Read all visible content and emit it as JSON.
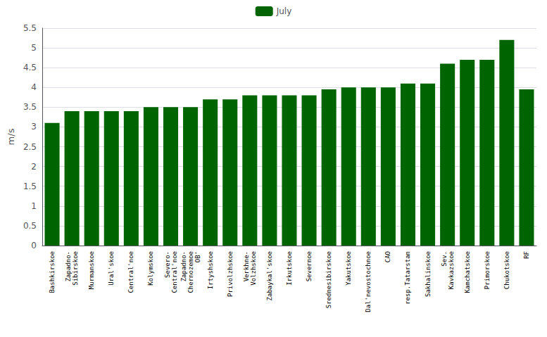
{
  "chart_data": {
    "type": "bar",
    "categories": [
      "Bashkirskoe",
      "Zapadno-\nSibirskoe",
      "Murmanskoe",
      "Ural'skoe",
      "Central'noe",
      "Kolymskoe",
      "Severo-\nCentral'noe",
      "Zapadno-\nChernozemoe\nOB'",
      "Irtyshskoe",
      "Privolzhskoe",
      "Verkhne-\nVolzhskoe",
      "Zabaykal'skoe",
      "Irkutskoe",
      "Severnoe",
      "Srednesibirskoe",
      "Yakutskoe",
      "Dal'nevostochnoe",
      "CAO",
      "resp.Tatarstan",
      "Sakhalinskoe",
      "Sev.\nKavkazskoe",
      "Kamchatskoe",
      "Primorskoe",
      "Chukotskoe",
      "RF"
    ],
    "series": [
      {
        "name": "July",
        "color": "#006400",
        "values": [
          3.1,
          3.4,
          3.4,
          3.4,
          3.4,
          3.5,
          3.5,
          3.5,
          3.7,
          3.7,
          3.8,
          3.8,
          3.8,
          3.8,
          3.95,
          4.0,
          4.0,
          4.0,
          4.1,
          4.1,
          4.6,
          4.7,
          4.7,
          5.2,
          3.95
        ]
      }
    ],
    "ylabel": "m/s",
    "ylim": [
      0,
      5.5
    ],
    "yticks": [
      0,
      0.5,
      1,
      1.5,
      2,
      2.5,
      3,
      3.5,
      4,
      4.5,
      5,
      5.5
    ],
    "grid": true,
    "legend": "top"
  }
}
